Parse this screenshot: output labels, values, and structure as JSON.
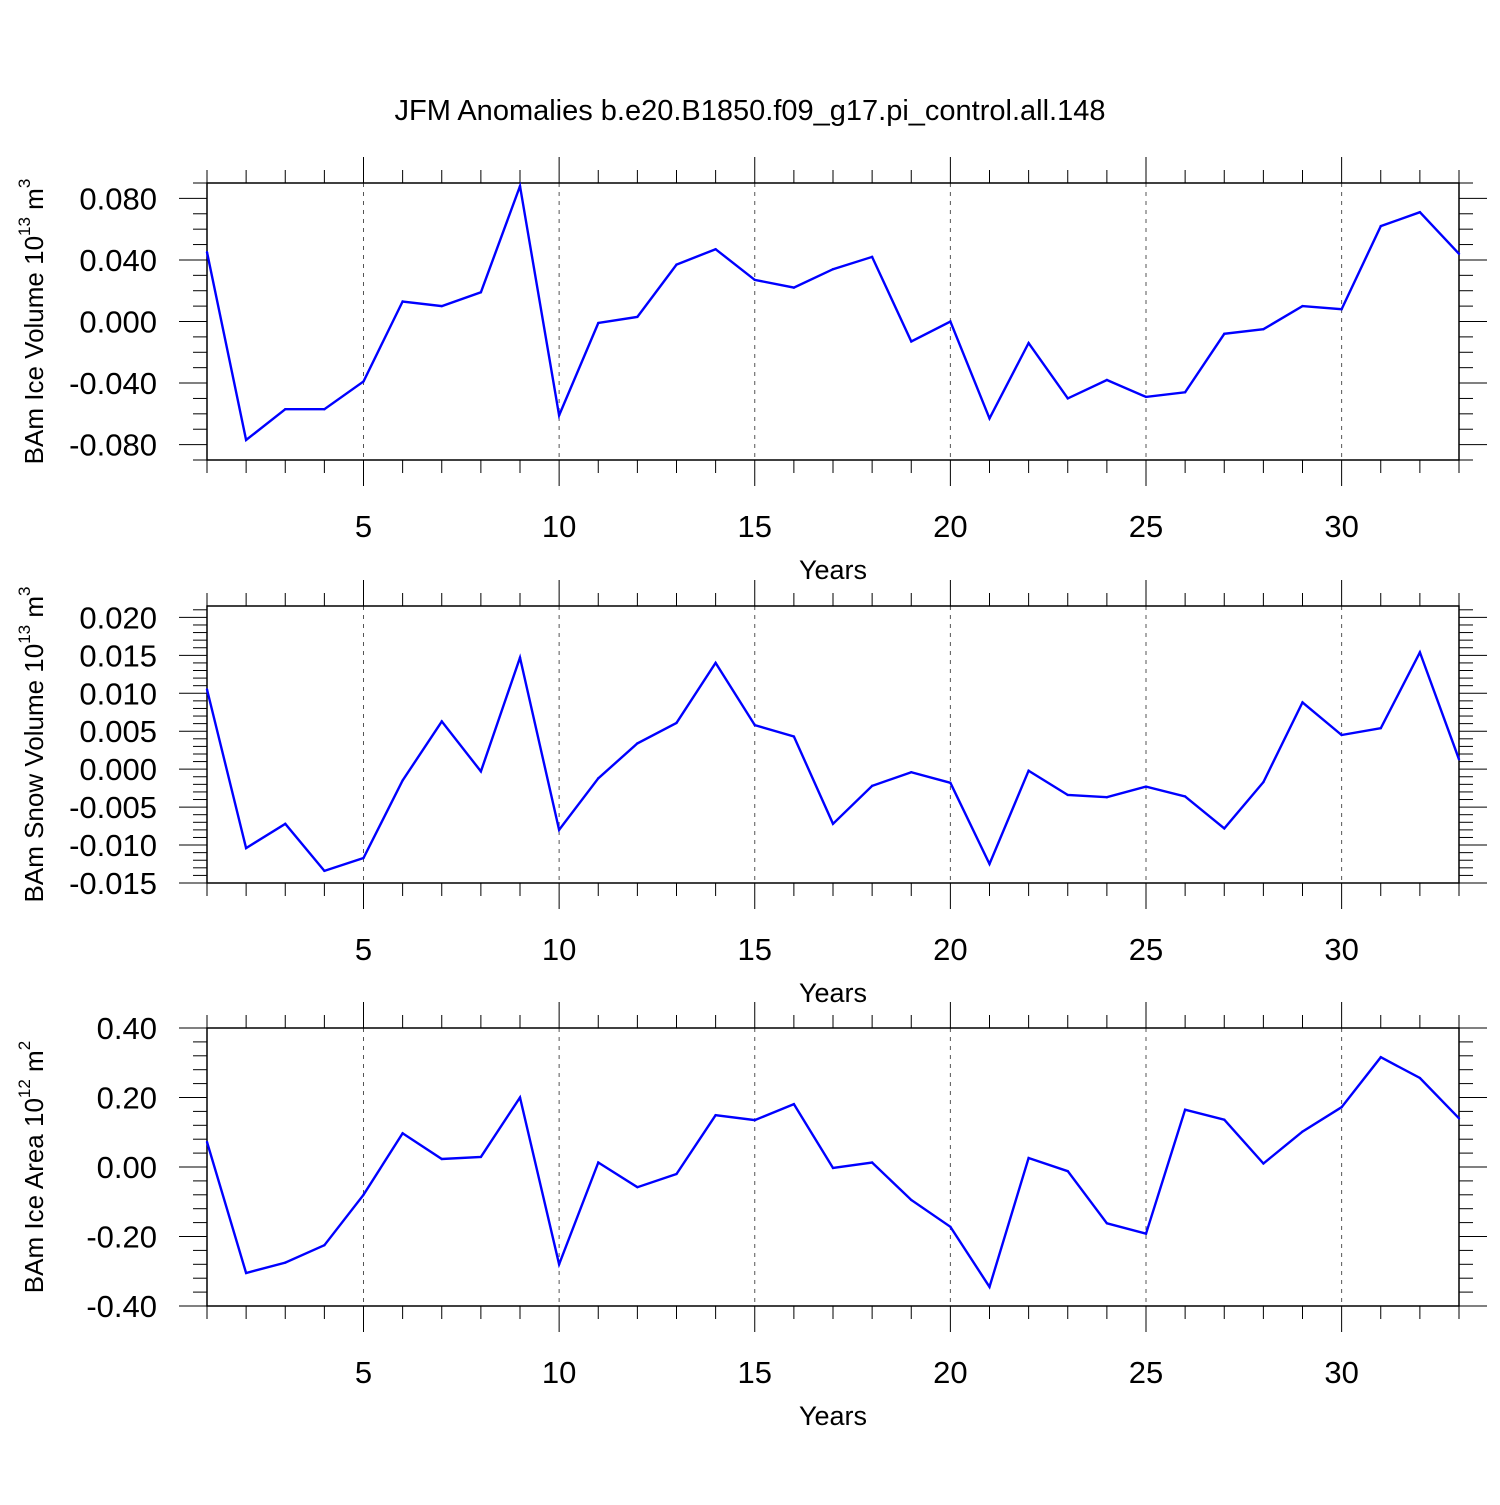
{
  "title": "JFM Anomalies b.e20.B1850.f09_g17.pi_control.all.148",
  "colors": {
    "line": "#0000ff",
    "axis": "#000000",
    "grid": "#555555",
    "background": "#ffffff"
  },
  "chart_data": [
    {
      "type": "line",
      "ylabel": "BAm Ice Volume 10",
      "ylabel_exp": "13",
      "ylabel_unit": " m",
      "ylabel_unit_exp": "3",
      "xlabel": "Years",
      "xlim": [
        1,
        33
      ],
      "ylim": [
        -0.09,
        0.09
      ],
      "yticks": [
        -0.08,
        -0.04,
        0.0,
        0.04,
        0.08
      ],
      "ytick_labels": [
        "-0.080",
        "-0.040",
        "0.000",
        "0.040",
        "0.080"
      ],
      "yminor_step": 0.01,
      "xticks": [
        5,
        10,
        15,
        20,
        25,
        30
      ],
      "xtick_labels": [
        "5",
        "10",
        "15",
        "20",
        "25",
        "30"
      ],
      "grid_x": [
        5,
        10,
        15,
        20,
        25,
        30
      ],
      "x": [
        1,
        2,
        3,
        4,
        5,
        6,
        7,
        8,
        9,
        10,
        11,
        12,
        13,
        14,
        15,
        16,
        17,
        18,
        19,
        20,
        21,
        22,
        23,
        24,
        25,
        26,
        27,
        28,
        29,
        30,
        31,
        32,
        33
      ],
      "values": [
        0.045,
        -0.077,
        -0.057,
        -0.057,
        -0.039,
        0.013,
        0.01,
        0.019,
        0.088,
        -0.061,
        -0.001,
        0.003,
        0.037,
        0.047,
        0.027,
        0.022,
        0.034,
        0.042,
        -0.013,
        0.0,
        -0.063,
        -0.014,
        -0.05,
        -0.038,
        -0.049,
        -0.046,
        -0.008,
        -0.005,
        0.01,
        0.008,
        0.062,
        0.071,
        0.044
      ]
    },
    {
      "type": "line",
      "ylabel": "BAm Snow Volume 10",
      "ylabel_exp": "13",
      "ylabel_unit": " m",
      "ylabel_unit_exp": "3",
      "xlabel": "Years",
      "xlim": [
        1,
        33
      ],
      "ylim": [
        -0.015,
        0.0215
      ],
      "yticks": [
        -0.015,
        -0.01,
        -0.005,
        0.0,
        0.005,
        0.01,
        0.015,
        0.02
      ],
      "ytick_labels": [
        "-0.015",
        "-0.010",
        "-0.005",
        "0.000",
        "0.005",
        "0.010",
        "0.015",
        "0.020"
      ],
      "yminor_step": 0.001,
      "xticks": [
        5,
        10,
        15,
        20,
        25,
        30
      ],
      "xtick_labels": [
        "5",
        "10",
        "15",
        "20",
        "25",
        "30"
      ],
      "grid_x": [
        5,
        10,
        15,
        20,
        25,
        30
      ],
      "x": [
        1,
        2,
        3,
        4,
        5,
        6,
        7,
        8,
        9,
        10,
        11,
        12,
        13,
        14,
        15,
        16,
        17,
        18,
        19,
        20,
        21,
        22,
        23,
        24,
        25,
        26,
        27,
        28,
        29,
        30,
        31,
        32,
        33
      ],
      "values": [
        0.0105,
        -0.0104,
        -0.0072,
        -0.0134,
        -0.0117,
        -0.0015,
        0.0063,
        -0.0003,
        0.0147,
        -0.008,
        -0.0012,
        0.0034,
        0.0061,
        0.014,
        0.0058,
        0.0043,
        -0.0072,
        -0.0022,
        -0.0004,
        -0.0018,
        -0.0125,
        -0.0002,
        -0.0034,
        -0.0037,
        -0.0023,
        -0.0036,
        -0.0078,
        -0.0017,
        0.0088,
        0.0045,
        0.0054,
        0.0154,
        0.0013
      ]
    },
    {
      "type": "line",
      "ylabel": "BAm Ice Area 10",
      "ylabel_exp": "12",
      "ylabel_unit": " m",
      "ylabel_unit_exp": "2",
      "xlabel": "Years",
      "xlim": [
        1,
        33
      ],
      "ylim": [
        -0.4,
        0.4
      ],
      "yticks": [
        -0.4,
        -0.2,
        0.0,
        0.2,
        0.4
      ],
      "ytick_labels": [
        "-0.40",
        "-0.20",
        "0.00",
        "0.20",
        "0.40"
      ],
      "yminor_step": 0.04,
      "xticks": [
        5,
        10,
        15,
        20,
        25,
        30
      ],
      "xtick_labels": [
        "5",
        "10",
        "15",
        "20",
        "25",
        "30"
      ],
      "grid_x": [
        5,
        10,
        15,
        20,
        25,
        30
      ],
      "x": [
        1,
        2,
        3,
        4,
        5,
        6,
        7,
        8,
        9,
        10,
        11,
        12,
        13,
        14,
        15,
        16,
        17,
        18,
        19,
        20,
        21,
        22,
        23,
        24,
        25,
        26,
        27,
        28,
        29,
        30,
        31,
        32,
        33
      ],
      "values": [
        0.072,
        -0.305,
        -0.275,
        -0.225,
        -0.08,
        0.097,
        0.023,
        0.029,
        0.2,
        -0.28,
        0.013,
        -0.058,
        -0.02,
        0.149,
        0.135,
        0.181,
        -0.003,
        0.013,
        -0.095,
        -0.172,
        -0.345,
        0.026,
        -0.012,
        -0.162,
        -0.192,
        0.165,
        0.136,
        0.01,
        0.102,
        0.172,
        0.316,
        0.256,
        0.14
      ]
    }
  ]
}
